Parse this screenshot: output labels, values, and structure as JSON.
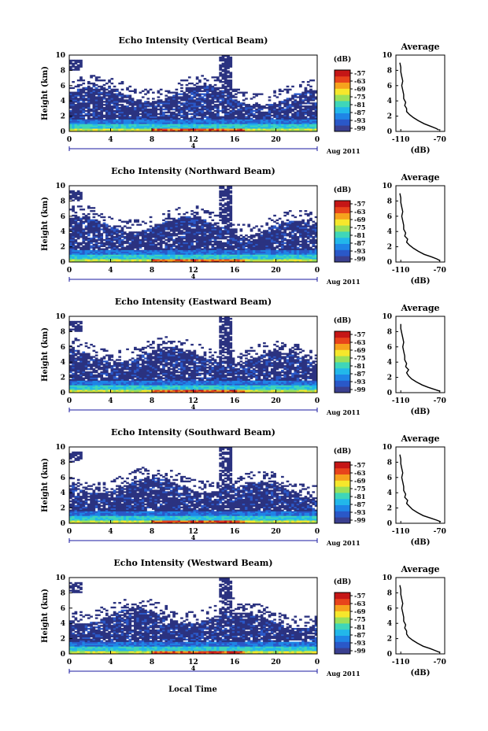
{
  "figure": {
    "date_label": "Aug 2011",
    "day_label": "4",
    "xlabel": "Local Time",
    "ylabel": "Height (km)",
    "avg_title": "Average",
    "avg_xlabel": "(dB)",
    "cbar_unit": "(dB)",
    "cbar_ticks": [
      "-57",
      "-63",
      "-69",
      "-75",
      "-81",
      "-87",
      "-93",
      "-99"
    ],
    "colors": {
      "background": "#2b3280",
      "colormap": [
        "#3a3f8f",
        "#2a58c8",
        "#1f85e6",
        "#22b7ea",
        "#3fd6b9",
        "#9be05a",
        "#f6e72c",
        "#f6a21d",
        "#e8441b",
        "#c51616"
      ]
    }
  },
  "chart_data": [
    {
      "type": "heatmap",
      "title": "Echo Intensity (Vertical Beam)",
      "x_ticks": [
        "0",
        "4",
        "8",
        "12",
        "16",
        "20",
        "0"
      ],
      "y_ticks": [
        "0",
        "2",
        "4",
        "6",
        "8",
        "10"
      ],
      "xlim": [
        0,
        24
      ],
      "ylim": [
        0,
        10
      ],
      "zlim": [
        -99,
        -57
      ],
      "avg": {
        "type": "line",
        "x_ticks": [
          "-110",
          "-70"
        ],
        "y_ticks": [
          "0",
          "2",
          "4",
          "6",
          "8",
          "10"
        ],
        "xlim": [
          -115,
          -65
        ],
        "ylim": [
          0,
          10
        ],
        "x": [
          -71,
          -74,
          -80,
          -86,
          -92,
          -97,
          -101,
          -104,
          -104,
          -106,
          -105,
          -107,
          -107,
          -108,
          -109,
          -108,
          -109,
          -110,
          -110,
          -111
        ],
        "y": [
          0.2,
          0.4,
          0.7,
          1.0,
          1.4,
          1.8,
          2.2,
          2.6,
          3.0,
          3.4,
          3.8,
          4.3,
          4.8,
          5.4,
          6.0,
          6.6,
          7.2,
          7.8,
          8.4,
          9.0
        ]
      }
    },
    {
      "type": "heatmap",
      "title": "Echo Intensity (Northward Beam)",
      "x_ticks": [
        "0",
        "4",
        "8",
        "12",
        "16",
        "20",
        "0"
      ],
      "y_ticks": [
        "0",
        "2",
        "4",
        "6",
        "8",
        "10"
      ],
      "xlim": [
        0,
        24
      ],
      "ylim": [
        0,
        10
      ],
      "zlim": [
        -99,
        -57
      ],
      "avg": {
        "type": "line",
        "x_ticks": [
          "-110",
          "-70"
        ],
        "y_ticks": [
          "0",
          "2",
          "4",
          "6",
          "8",
          "10"
        ],
        "xlim": [
          -115,
          -65
        ],
        "ylim": [
          0,
          10
        ],
        "x": [
          -70,
          -73,
          -79,
          -86,
          -92,
          -97,
          -101,
          -104,
          -103,
          -106,
          -105,
          -107,
          -107,
          -108,
          -109,
          -108,
          -109,
          -110,
          -110,
          -111
        ],
        "y": [
          0.2,
          0.4,
          0.7,
          1.0,
          1.4,
          1.8,
          2.2,
          2.6,
          3.0,
          3.4,
          3.8,
          4.3,
          4.8,
          5.4,
          6.0,
          6.6,
          7.2,
          7.8,
          8.4,
          9.0
        ]
      }
    },
    {
      "type": "heatmap",
      "title": "Echo Intensity (Eastward Beam)",
      "x_ticks": [
        "0",
        "4",
        "8",
        "12",
        "16",
        "20",
        "0"
      ],
      "y_ticks": [
        "0",
        "2",
        "4",
        "6",
        "8",
        "10"
      ],
      "xlim": [
        0,
        24
      ],
      "ylim": [
        0,
        10
      ],
      "zlim": [
        -99,
        -57
      ],
      "avg": {
        "type": "line",
        "x_ticks": [
          "-110",
          "-70"
        ],
        "y_ticks": [
          "0",
          "2",
          "4",
          "6",
          "8",
          "10"
        ],
        "xlim": [
          -115,
          -65
        ],
        "ylim": [
          0,
          10
        ],
        "x": [
          -70,
          -75,
          -82,
          -88,
          -94,
          -99,
          -102,
          -104,
          -102,
          -105,
          -104,
          -106,
          -106,
          -107,
          -108,
          -107,
          -108,
          -109,
          -110,
          -110
        ],
        "y": [
          0.2,
          0.4,
          0.7,
          1.0,
          1.4,
          1.8,
          2.2,
          2.6,
          3.0,
          3.4,
          3.8,
          4.3,
          4.8,
          5.4,
          6.0,
          6.6,
          7.2,
          7.8,
          8.4,
          9.0
        ]
      }
    },
    {
      "type": "heatmap",
      "title": "Echo Intensity (Southward Beam)",
      "x_ticks": [
        "0",
        "4",
        "8",
        "12",
        "16",
        "20",
        "0"
      ],
      "y_ticks": [
        "0",
        "2",
        "4",
        "6",
        "8",
        "10"
      ],
      "xlim": [
        0,
        24
      ],
      "ylim": [
        0,
        10
      ],
      "zlim": [
        -99,
        -57
      ],
      "avg": {
        "type": "line",
        "x_ticks": [
          "-110",
          "-70"
        ],
        "y_ticks": [
          "0",
          "2",
          "4",
          "6",
          "8",
          "10"
        ],
        "xlim": [
          -115,
          -65
        ],
        "ylim": [
          0,
          10
        ],
        "x": [
          -69,
          -73,
          -80,
          -87,
          -93,
          -98,
          -101,
          -104,
          -103,
          -106,
          -105,
          -107,
          -107,
          -108,
          -109,
          -108,
          -109,
          -110,
          -110,
          -111
        ],
        "y": [
          0.2,
          0.4,
          0.7,
          1.0,
          1.4,
          1.8,
          2.2,
          2.6,
          3.0,
          3.4,
          3.8,
          4.3,
          4.8,
          5.4,
          6.0,
          6.6,
          7.2,
          7.8,
          8.4,
          9.0
        ]
      }
    },
    {
      "type": "heatmap",
      "title": "Echo Intensity (Westward Beam)",
      "x_ticks": [
        "0",
        "4",
        "8",
        "12",
        "16",
        "20",
        "0"
      ],
      "y_ticks": [
        "0",
        "2",
        "4",
        "6",
        "8",
        "10"
      ],
      "xlim": [
        0,
        24
      ],
      "ylim": [
        0,
        10
      ],
      "zlim": [
        -99,
        -57
      ],
      "avg": {
        "type": "line",
        "x_ticks": [
          "-110",
          "-70"
        ],
        "y_ticks": [
          "0",
          "2",
          "4",
          "6",
          "8",
          "10"
        ],
        "xlim": [
          -115,
          -65
        ],
        "ylim": [
          0,
          10
        ],
        "x": [
          -70,
          -74,
          -80,
          -87,
          -93,
          -98,
          -102,
          -104,
          -104,
          -106,
          -105,
          -107,
          -107,
          -108,
          -109,
          -108,
          -109,
          -110,
          -110,
          -111
        ],
        "y": [
          0.2,
          0.4,
          0.7,
          1.0,
          1.4,
          1.8,
          2.2,
          2.6,
          3.0,
          3.4,
          3.8,
          4.3,
          4.8,
          5.4,
          6.0,
          6.6,
          7.2,
          7.8,
          8.4,
          9.0
        ]
      }
    }
  ]
}
